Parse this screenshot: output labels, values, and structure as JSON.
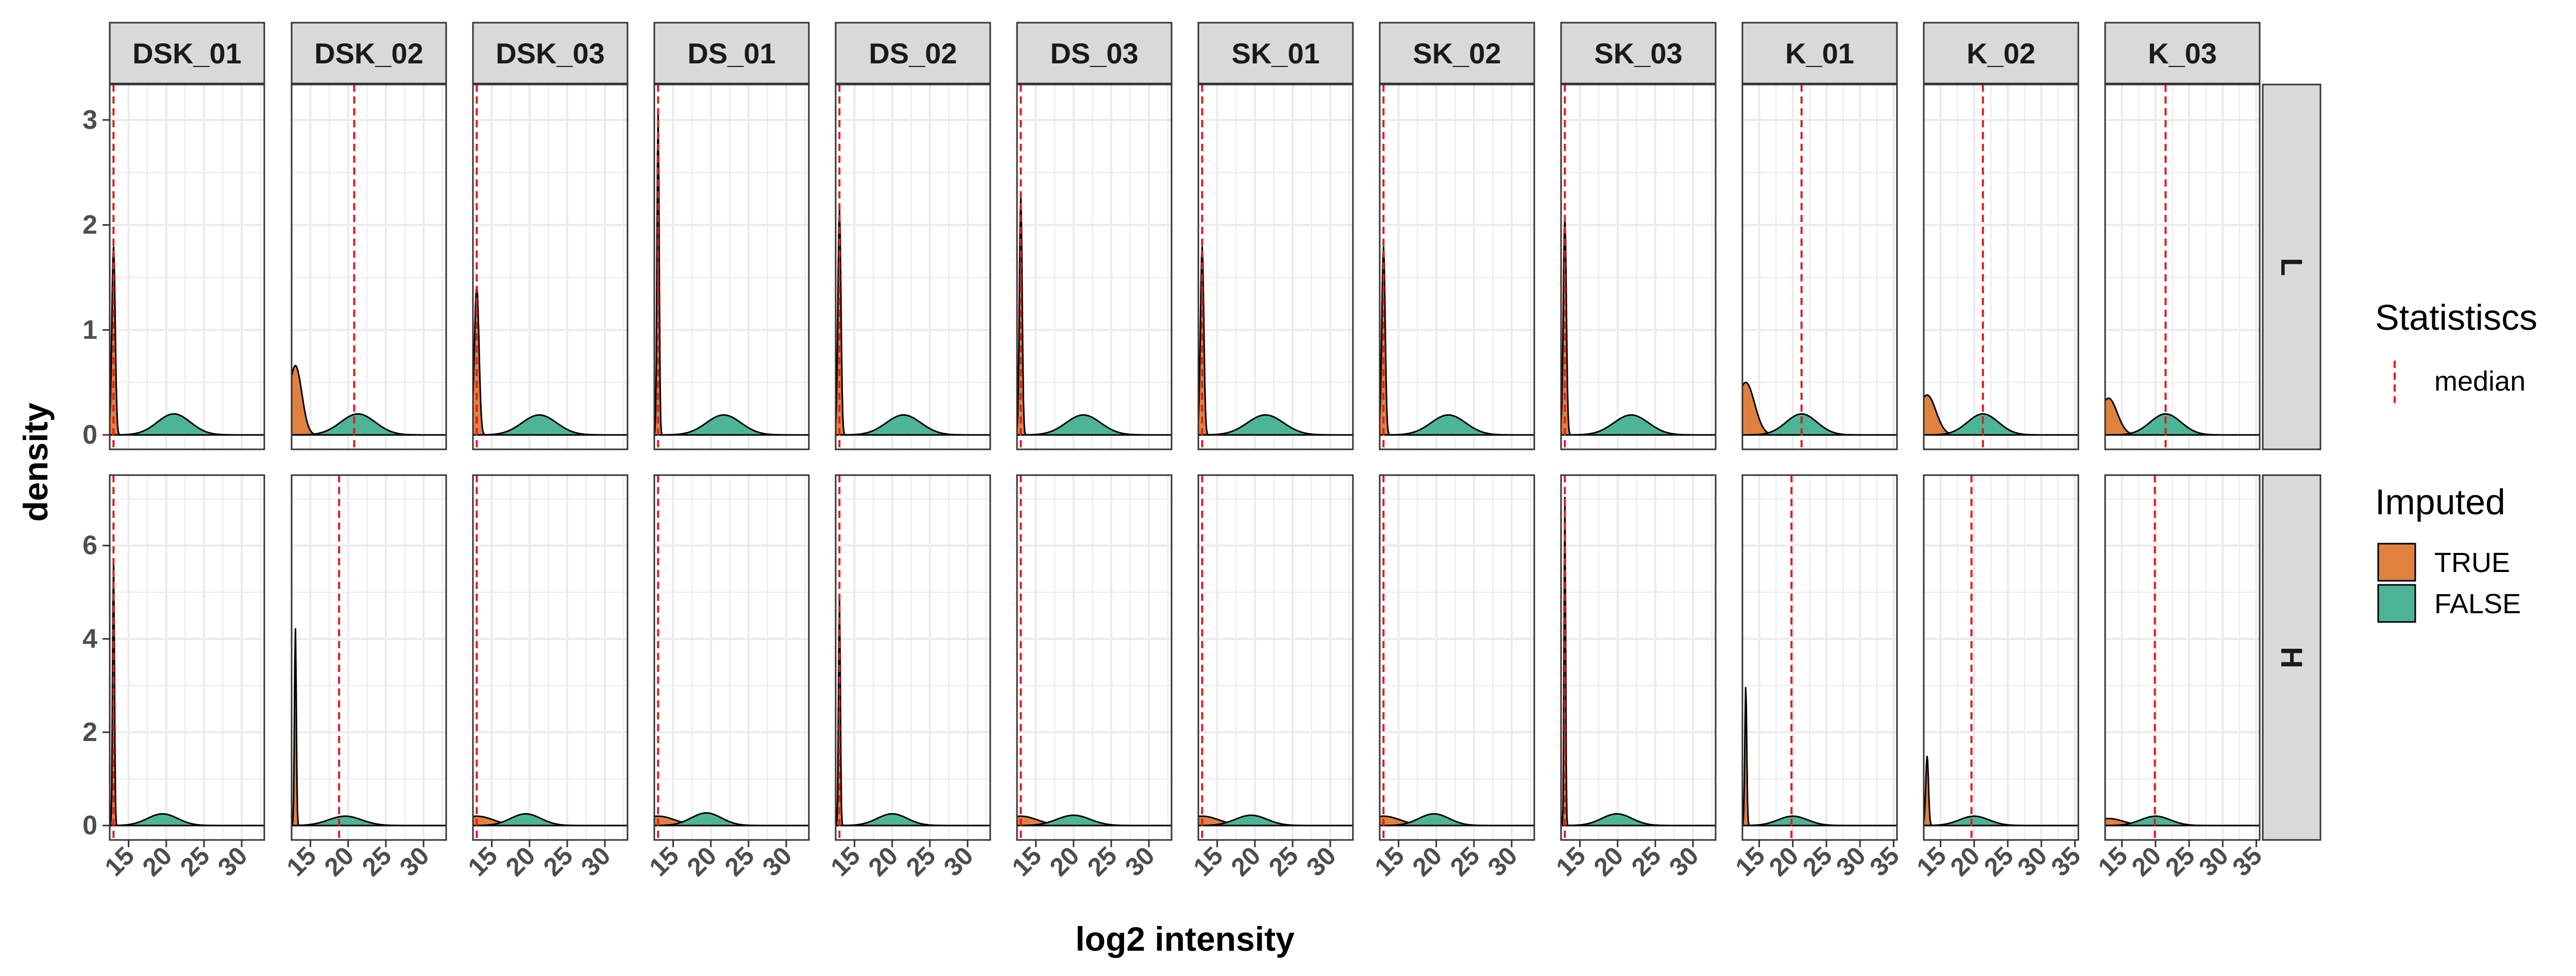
{
  "chart_data": {
    "type": "area",
    "xlabel": "log2 intensity",
    "ylabel": "density",
    "column_facets": [
      "DSK_01",
      "DSK_02",
      "DSK_03",
      "DS_01",
      "DS_02",
      "DS_03",
      "SK_01",
      "SK_02",
      "SK_03",
      "K_01",
      "K_02",
      "K_03"
    ],
    "row_facets": [
      "L",
      "H"
    ],
    "row_ylim": {
      "L": [
        0,
        3.2
      ],
      "H": [
        0,
        7.2
      ]
    },
    "row_yticks": {
      "L": [
        "0",
        "1",
        "2",
        "3"
      ],
      "H": [
        "0",
        "2",
        "4",
        "6"
      ]
    },
    "x_ticks_by_panel": [
      [
        "15",
        "20",
        "25",
        "30"
      ],
      [
        "15",
        "20",
        "25",
        "30"
      ],
      [
        "15",
        "20",
        "25",
        "30"
      ],
      [
        "15",
        "20",
        "25",
        "30"
      ],
      [
        "15",
        "20",
        "25",
        "30"
      ],
      [
        "15",
        "20",
        "25",
        "30"
      ],
      [
        "15",
        "20",
        "25",
        "30"
      ],
      [
        "15",
        "20",
        "25",
        "30"
      ],
      [
        "15",
        "20",
        "25",
        "30"
      ],
      [
        "15",
        "20",
        "25",
        "30",
        "35"
      ],
      [
        "15",
        "20",
        "25",
        "30",
        "35"
      ],
      [
        "15",
        "20",
        "25",
        "30",
        "35"
      ]
    ],
    "legend": {
      "statistics_title": "Statistiscs",
      "median_label": "median",
      "imputed_title": "Imputed",
      "true_label": "TRUE",
      "false_label": "FALSE"
    },
    "colors": {
      "TRUE": "#E0823D",
      "FALSE": "#4CB597",
      "median": "#E4191C",
      "strip": "#D9D9D9",
      "grid": "#EBEBEB"
    },
    "panels": [
      {
        "row": "L",
        "col": "DSK_01",
        "xlim": [
          12.5,
          33
        ],
        "median": 13.0,
        "imputed": {
          "peak": 1.8,
          "at": 13.0,
          "width": 0.22
        },
        "observed": {
          "peak": 0.2,
          "center": 21.0,
          "sd": 2.2
        }
      },
      {
        "row": "L",
        "col": "DSK_02",
        "xlim": [
          12.5,
          33
        ],
        "median": 20.8,
        "imputed": {
          "peak": 0.66,
          "at": 13.0,
          "width": 0.85
        },
        "observed": {
          "peak": 0.2,
          "center": 21.3,
          "sd": 2.3
        }
      },
      {
        "row": "L",
        "col": "DSK_03",
        "xlim": [
          12.5,
          33
        ],
        "median": 13.0,
        "imputed": {
          "peak": 1.42,
          "at": 13.0,
          "width": 0.3
        },
        "observed": {
          "peak": 0.19,
          "center": 21.3,
          "sd": 2.3
        }
      },
      {
        "row": "L",
        "col": "DS_01",
        "xlim": [
          12.5,
          33
        ],
        "median": 13.0,
        "imputed": {
          "peak": 3.08,
          "at": 13.0,
          "width": 0.14
        },
        "observed": {
          "peak": 0.19,
          "center": 21.7,
          "sd": 2.3
        }
      },
      {
        "row": "L",
        "col": "DS_02",
        "xlim": [
          12.5,
          33
        ],
        "median": 13.0,
        "imputed": {
          "peak": 2.15,
          "at": 13.0,
          "width": 0.2
        },
        "observed": {
          "peak": 0.19,
          "center": 21.5,
          "sd": 2.3
        }
      },
      {
        "row": "L",
        "col": "DS_03",
        "xlim": [
          12.5,
          33
        ],
        "median": 13.0,
        "imputed": {
          "peak": 2.28,
          "at": 13.0,
          "width": 0.18
        },
        "observed": {
          "peak": 0.19,
          "center": 21.3,
          "sd": 2.3
        }
      },
      {
        "row": "L",
        "col": "SK_01",
        "xlim": [
          12.5,
          33
        ],
        "median": 13.0,
        "imputed": {
          "peak": 1.8,
          "at": 13.0,
          "width": 0.22
        },
        "observed": {
          "peak": 0.19,
          "center": 21.4,
          "sd": 2.4
        }
      },
      {
        "row": "L",
        "col": "SK_02",
        "xlim": [
          12.5,
          33
        ],
        "median": 13.0,
        "imputed": {
          "peak": 1.8,
          "at": 13.0,
          "width": 0.22
        },
        "observed": {
          "peak": 0.19,
          "center": 21.6,
          "sd": 2.3
        }
      },
      {
        "row": "L",
        "col": "SK_03",
        "xlim": [
          12.5,
          33
        ],
        "median": 13.0,
        "imputed": {
          "peak": 2.08,
          "at": 13.0,
          "width": 0.2
        },
        "observed": {
          "peak": 0.19,
          "center": 21.8,
          "sd": 2.3
        }
      },
      {
        "row": "L",
        "col": "K_01",
        "xlim": [
          12.5,
          35.5
        ],
        "median": 21.3,
        "imputed": {
          "peak": 0.5,
          "at": 13.0,
          "width": 1.3
        },
        "observed": {
          "peak": 0.2,
          "center": 21.3,
          "sd": 2.3
        }
      },
      {
        "row": "L",
        "col": "K_02",
        "xlim": [
          12.5,
          35.5
        ],
        "median": 21.3,
        "imputed": {
          "peak": 0.38,
          "at": 13.0,
          "width": 1.3
        },
        "observed": {
          "peak": 0.2,
          "center": 21.3,
          "sd": 2.3
        }
      },
      {
        "row": "L",
        "col": "K_03",
        "xlim": [
          12.5,
          35.5
        ],
        "median": 21.5,
        "imputed": {
          "peak": 0.35,
          "at": 13.0,
          "width": 1.3
        },
        "observed": {
          "peak": 0.2,
          "center": 21.5,
          "sd": 2.3
        }
      },
      {
        "row": "H",
        "col": "DSK_01",
        "xlim": [
          12.5,
          33
        ],
        "median": 13.0,
        "imputed": {
          "peak": 5.7,
          "at": 13.0,
          "width": 0.12
        },
        "observed": {
          "peak": 0.25,
          "center": 19.5,
          "sd": 2.0
        }
      },
      {
        "row": "H",
        "col": "DSK_02",
        "xlim": [
          12.5,
          33
        ],
        "median": 18.8,
        "imputed": {
          "peak": 4.25,
          "at": 13.0,
          "width": 0.12
        },
        "observed": {
          "peak": 0.2,
          "center": 19.6,
          "sd": 2.2
        }
      },
      {
        "row": "H",
        "col": "DSK_03",
        "xlim": [
          12.5,
          33
        ],
        "median": 13.0,
        "imputed": {
          "peak": 0.2,
          "at": 13.0,
          "width": 2.2
        },
        "observed": {
          "peak": 0.25,
          "center": 19.5,
          "sd": 2.0
        }
      },
      {
        "row": "H",
        "col": "DS_01",
        "xlim": [
          12.5,
          33
        ],
        "median": 13.0,
        "imputed": {
          "peak": 0.2,
          "at": 13.0,
          "width": 2.2
        },
        "observed": {
          "peak": 0.27,
          "center": 19.4,
          "sd": 2.0
        }
      },
      {
        "row": "H",
        "col": "DS_02",
        "xlim": [
          12.5,
          33
        ],
        "median": 13.0,
        "imputed": {
          "peak": 4.9,
          "at": 13.0,
          "width": 0.12
        },
        "observed": {
          "peak": 0.25,
          "center": 20.0,
          "sd": 2.0
        }
      },
      {
        "row": "H",
        "col": "DS_03",
        "xlim": [
          12.5,
          33
        ],
        "median": 13.0,
        "imputed": {
          "peak": 0.2,
          "at": 13.0,
          "width": 2.2
        },
        "observed": {
          "peak": 0.22,
          "center": 20.0,
          "sd": 2.2
        }
      },
      {
        "row": "H",
        "col": "SK_01",
        "xlim": [
          12.5,
          33
        ],
        "median": 13.0,
        "imputed": {
          "peak": 0.2,
          "at": 13.0,
          "width": 2.2
        },
        "observed": {
          "peak": 0.22,
          "center": 19.5,
          "sd": 2.1
        }
      },
      {
        "row": "H",
        "col": "SK_02",
        "xlim": [
          12.5,
          33
        ],
        "median": 13.0,
        "imputed": {
          "peak": 0.2,
          "at": 13.0,
          "width": 2.2
        },
        "observed": {
          "peak": 0.25,
          "center": 19.7,
          "sd": 2.0
        }
      },
      {
        "row": "H",
        "col": "SK_03",
        "xlim": [
          12.5,
          33
        ],
        "median": 13.0,
        "imputed": {
          "peak": 7.1,
          "at": 13.0,
          "width": 0.1
        },
        "observed": {
          "peak": 0.25,
          "center": 19.9,
          "sd": 2.0
        }
      },
      {
        "row": "H",
        "col": "K_01",
        "xlim": [
          12.5,
          35.5
        ],
        "median": 19.8,
        "imputed": {
          "peak": 3.0,
          "at": 13.0,
          "width": 0.14
        },
        "observed": {
          "peak": 0.2,
          "center": 20.0,
          "sd": 2.2
        }
      },
      {
        "row": "H",
        "col": "K_02",
        "xlim": [
          12.5,
          35.5
        ],
        "median": 19.6,
        "imputed": {
          "peak": 1.5,
          "at": 13.0,
          "width": 0.2
        },
        "observed": {
          "peak": 0.2,
          "center": 20.0,
          "sd": 2.2
        }
      },
      {
        "row": "H",
        "col": "K_03",
        "xlim": [
          12.5,
          35.5
        ],
        "median": 19.9,
        "imputed": {
          "peak": 0.15,
          "at": 13.0,
          "width": 2.2
        },
        "observed": {
          "peak": 0.2,
          "center": 20.0,
          "sd": 2.2
        }
      }
    ]
  }
}
